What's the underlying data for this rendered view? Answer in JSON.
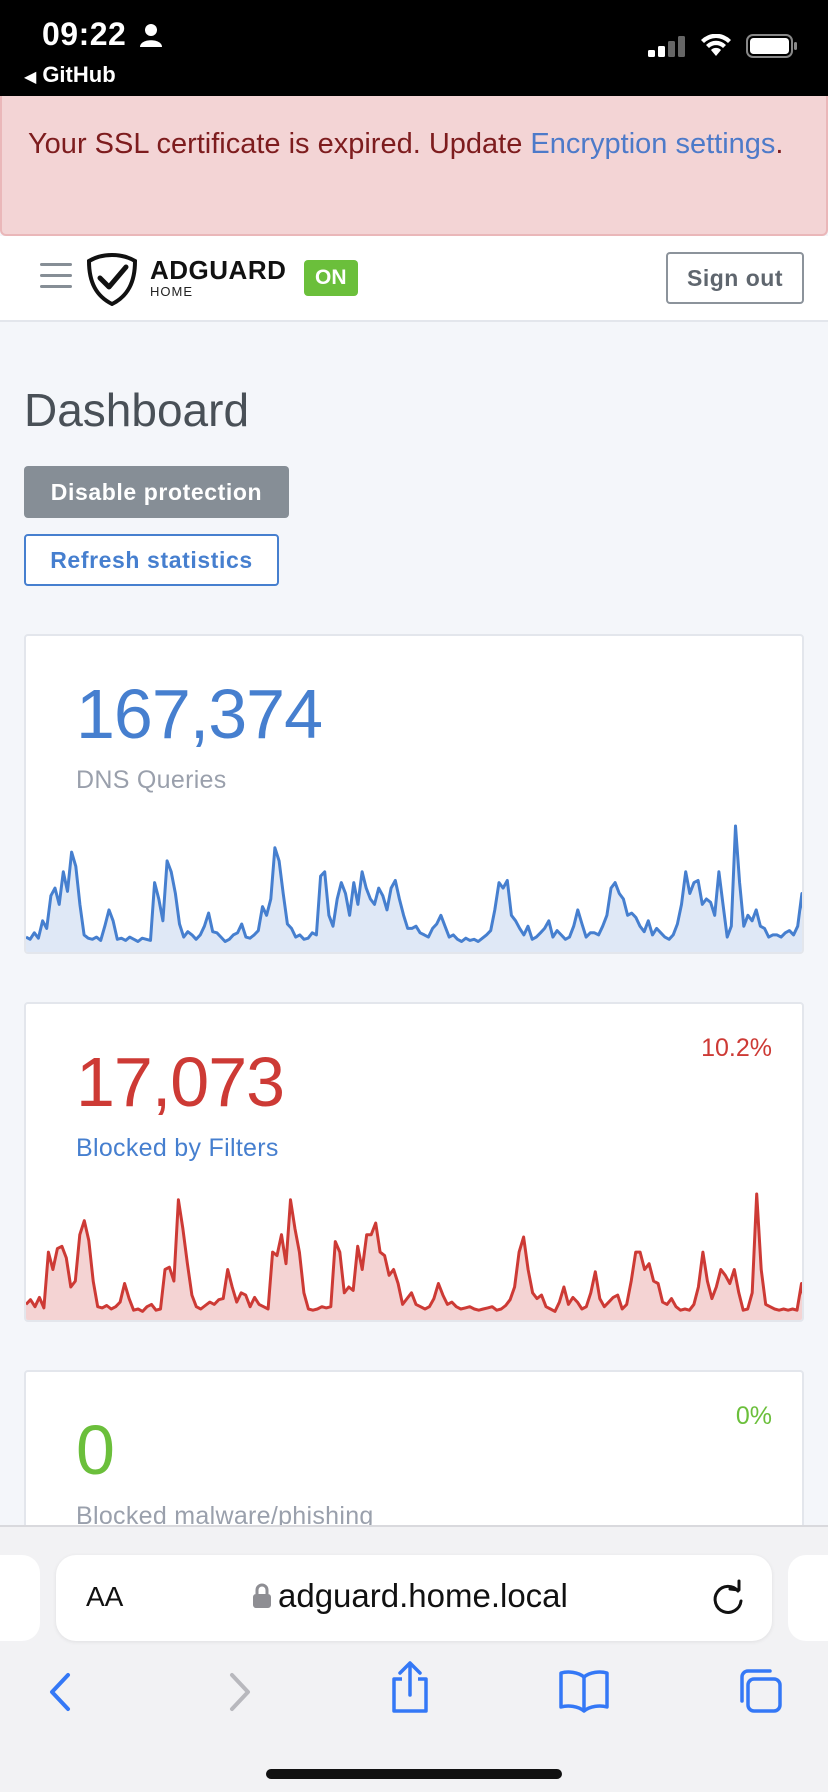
{
  "status_bar": {
    "time": "09:22",
    "back_label": "GitHub"
  },
  "alert": {
    "text": "Your SSL certificate is expired. Update ",
    "link": "Encryption settings",
    "end": "."
  },
  "header": {
    "logo_main": "ADGUARD",
    "logo_sub": "HOME",
    "status_badge": "ON",
    "signout_label": "Sign out"
  },
  "dashboard": {
    "title": "Dashboard",
    "disable_label": "Disable protection",
    "refresh_label": "Refresh statistics"
  },
  "cards": [
    {
      "value": "167,374",
      "label": "DNS Queries",
      "percent": "",
      "color": "#467fcf",
      "fill": "#dfe8f6",
      "label_color": "#9aa0ac",
      "series": [
        10,
        8,
        14,
        9,
        25,
        18,
        48,
        55,
        40,
        70,
        52,
        88,
        75,
        40,
        12,
        9,
        8,
        10,
        7,
        20,
        35,
        25,
        8,
        9,
        7,
        10,
        8,
        6,
        9,
        8,
        7,
        60,
        45,
        25,
        80,
        70,
        50,
        22,
        10,
        15,
        12,
        8,
        12,
        20,
        32,
        15,
        14,
        10,
        6,
        8,
        12,
        14,
        22,
        10,
        9,
        12,
        16,
        38,
        30,
        45,
        92,
        80,
        50,
        22,
        18,
        10,
        12,
        8,
        9,
        14,
        12,
        66,
        70,
        30,
        20,
        45,
        60,
        50,
        30,
        60,
        40,
        70,
        55,
        45,
        40,
        55,
        48,
        35,
        55,
        62,
        45,
        30,
        18,
        18,
        20,
        14,
        12,
        10,
        18,
        22,
        30,
        20,
        10,
        12,
        8,
        6,
        9,
        7,
        8,
        6,
        9,
        12,
        16,
        35,
        60,
        55,
        62,
        30,
        25,
        18,
        12,
        20,
        8,
        10,
        14,
        18,
        25,
        10,
        16,
        12,
        8,
        10,
        20,
        35,
        22,
        10,
        14,
        14,
        12,
        20,
        30,
        55,
        60,
        50,
        45,
        30,
        32,
        28,
        20,
        15,
        25,
        12,
        18,
        14,
        10,
        8,
        12,
        22,
        40,
        70,
        50,
        60,
        62,
        40,
        45,
        42,
        30,
        70,
        40,
        10,
        20,
        112,
        60,
        20,
        30,
        25,
        35,
        20,
        18,
        10,
        12,
        12,
        10,
        14,
        16,
        12,
        20,
        50,
        10
      ]
    },
    {
      "value": "17,073",
      "label": "Blocked by Filters",
      "percent": "10.2%",
      "color": "#cd3a35",
      "fill": "#f4d3d3",
      "label_color": "#467fcf",
      "series": [
        10,
        14,
        8,
        16,
        7,
        55,
        40,
        58,
        60,
        50,
        25,
        30,
        70,
        82,
        65,
        30,
        8,
        7,
        9,
        6,
        8,
        12,
        28,
        15,
        5,
        6,
        4,
        8,
        10,
        5,
        6,
        40,
        42,
        30,
        100,
        75,
        45,
        18,
        8,
        6,
        9,
        12,
        10,
        14,
        15,
        40,
        25,
        12,
        20,
        18,
        8,
        16,
        10,
        8,
        6,
        55,
        52,
        70,
        45,
        100,
        75,
        55,
        20,
        6,
        5,
        6,
        8,
        7,
        8,
        64,
        55,
        20,
        25,
        22,
        60,
        40,
        70,
        70,
        80,
        55,
        52,
        35,
        40,
        28,
        10,
        15,
        20,
        10,
        8,
        6,
        8,
        15,
        28,
        18,
        10,
        12,
        8,
        6,
        7,
        8,
        6,
        5,
        6,
        7,
        8,
        5,
        6,
        9,
        14,
        25,
        55,
        68,
        40,
        20,
        15,
        18,
        8,
        6,
        4,
        12,
        25,
        10,
        16,
        12,
        6,
        8,
        20,
        38,
        15,
        8,
        12,
        16,
        18,
        6,
        10,
        30,
        55,
        55,
        40,
        45,
        30,
        28,
        12,
        10,
        15,
        8,
        5,
        6,
        5,
        10,
        25,
        55,
        30,
        15,
        25,
        40,
        35,
        28,
        40,
        20,
        5,
        6,
        20,
        105,
        40,
        10,
        8,
        6,
        5,
        6,
        5,
        6,
        5,
        28,
        5
      ]
    },
    {
      "value": "0",
      "label": "Blocked malware/phishing",
      "percent": "0%",
      "color": "#6bbf3b",
      "fill": "#e6f3dc",
      "label_color": "#9aa0ac",
      "series": []
    }
  ],
  "safari": {
    "url": "adguard.home.local",
    "aa_label": "AA"
  }
}
